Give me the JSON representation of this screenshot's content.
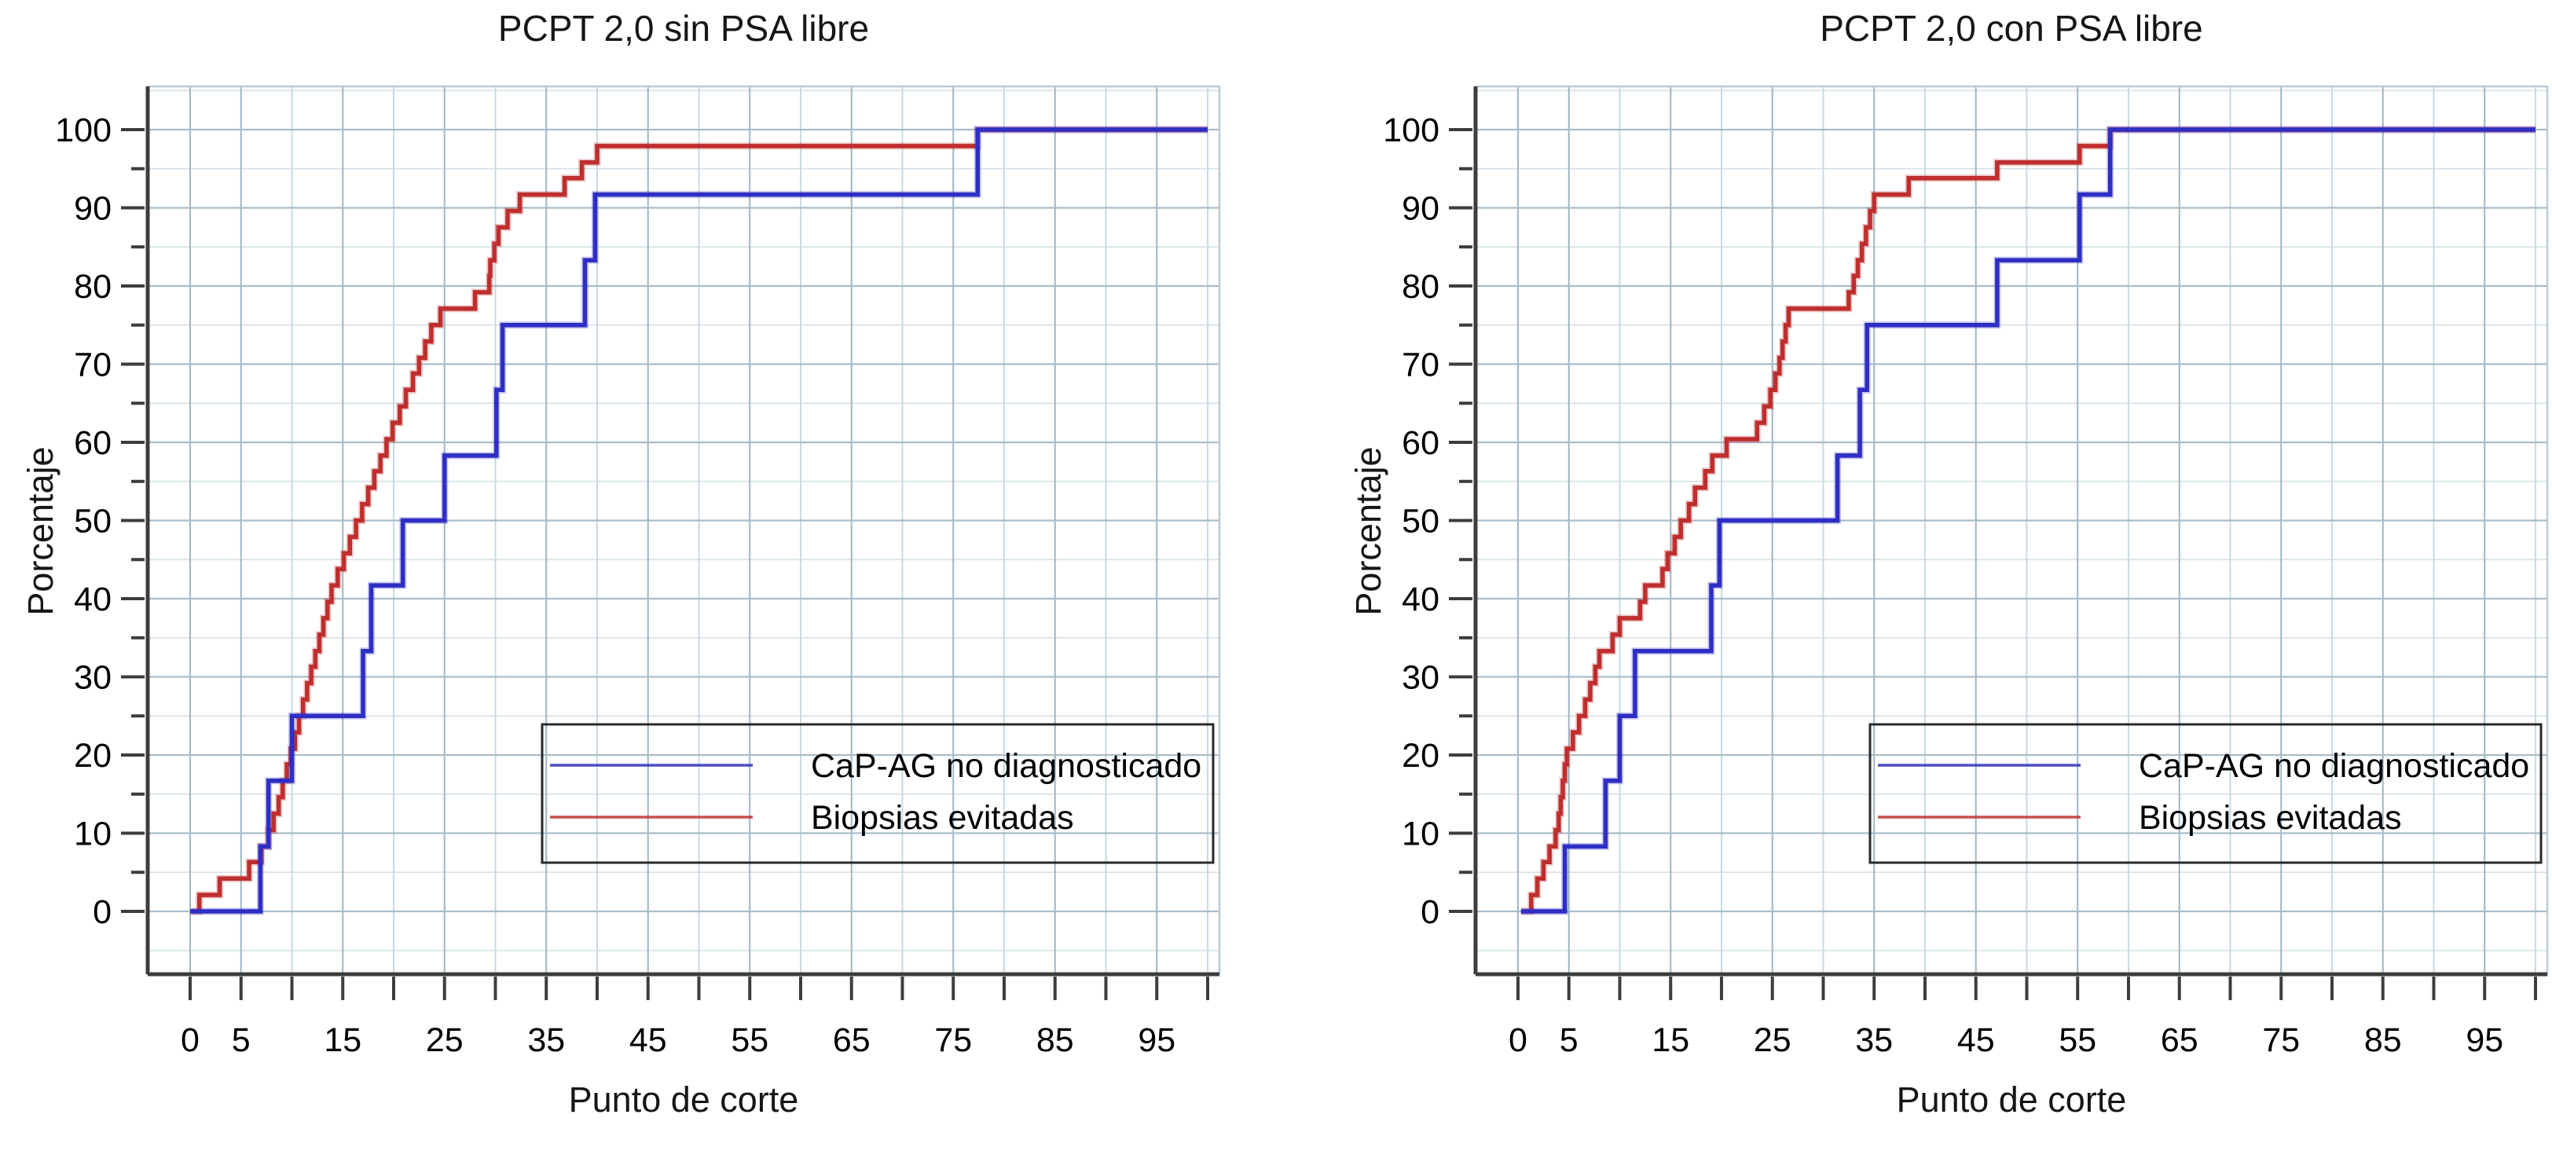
{
  "figure": {
    "background": "#ffffff",
    "text_color": "#161616"
  },
  "legend": {
    "border_color": "#2a2a2a",
    "entries": [
      {
        "label": "CaP-AG no diagnosticado",
        "color": "#2e2ec4"
      },
      {
        "label": "Biopsias evitadas",
        "color": "#bf2e2e"
      }
    ]
  },
  "axes": {
    "x": {
      "label": "Punto de corte",
      "range": [
        0,
        100
      ],
      "tick_step": 5,
      "tick_labels": [
        [
          0,
          "0"
        ],
        [
          5,
          "5"
        ],
        [
          15,
          "15"
        ],
        [
          25,
          "25"
        ],
        [
          35,
          "35"
        ],
        [
          45,
          "45"
        ],
        [
          55,
          "55"
        ],
        [
          65,
          "65"
        ],
        [
          75,
          "75"
        ],
        [
          85,
          "85"
        ],
        [
          95,
          "95"
        ]
      ]
    },
    "y": {
      "label": "Porcentaje",
      "range": [
        0,
        100
      ],
      "tick_step": 5,
      "tick_labels": [
        [
          0,
          "0"
        ],
        [
          10,
          "10"
        ],
        [
          20,
          "20"
        ],
        [
          30,
          "30"
        ],
        [
          40,
          "40"
        ],
        [
          50,
          "50"
        ],
        [
          60,
          "60"
        ],
        [
          70,
          "70"
        ],
        [
          80,
          "80"
        ],
        [
          90,
          "90"
        ],
        [
          100,
          "100"
        ]
      ]
    }
  },
  "chart_data": {
    "type": "line",
    "subtype": "step-ecdf",
    "grid": "on",
    "legend_position": "lower-right-inside",
    "note": "Two panels; each has two cumulative step curves read from the plot."
  },
  "charts": [
    {
      "title": "PCPT 2,0 sin PSA libre",
      "series": [
        {
          "name": "Biopsias evitadas",
          "color": "#bf2e2e",
          "start_x": 0.2,
          "end_x": 100,
          "steps": [
            [
              0.9,
              2.1
            ],
            [
              2.9,
              4.2
            ],
            [
              5.8,
              6.3
            ],
            [
              7.0,
              8.3
            ],
            [
              7.7,
              10.4
            ],
            [
              8.2,
              12.5
            ],
            [
              8.7,
              14.6
            ],
            [
              9.1,
              16.7
            ],
            [
              9.5,
              18.8
            ],
            [
              9.9,
              20.8
            ],
            [
              10.3,
              22.9
            ],
            [
              10.7,
              25
            ],
            [
              11.1,
              27.1
            ],
            [
              11.5,
              29.2
            ],
            [
              11.9,
              31.3
            ],
            [
              12.3,
              33.3
            ],
            [
              12.7,
              35.4
            ],
            [
              13.1,
              37.5
            ],
            [
              13.5,
              39.6
            ],
            [
              13.9,
              41.7
            ],
            [
              14.5,
              43.8
            ],
            [
              15.1,
              45.8
            ],
            [
              15.7,
              47.9
            ],
            [
              16.3,
              50
            ],
            [
              16.9,
              52.1
            ],
            [
              17.5,
              54.2
            ],
            [
              18.1,
              56.3
            ],
            [
              18.7,
              58.3
            ],
            [
              19.3,
              60.4
            ],
            [
              19.9,
              62.5
            ],
            [
              20.6,
              64.6
            ],
            [
              21.2,
              66.7
            ],
            [
              21.9,
              68.8
            ],
            [
              22.5,
              70.8
            ],
            [
              23.1,
              72.9
            ],
            [
              23.7,
              75
            ],
            [
              24.6,
              77.1
            ],
            [
              28.0,
              79.2
            ],
            [
              29.4,
              81.3
            ],
            [
              29.5,
              83.3
            ],
            [
              29.9,
              85.4
            ],
            [
              30.3,
              87.5
            ],
            [
              31.2,
              89.6
            ],
            [
              32.4,
              91.7
            ],
            [
              36.8,
              93.8
            ],
            [
              38.5,
              95.8
            ],
            [
              40.0,
              97.9
            ],
            [
              77.4,
              100
            ]
          ]
        },
        {
          "name": "CaP-AG no diagnosticado",
          "color": "#2e2ec4",
          "start_x": 0.0,
          "end_x": 100,
          "steps": [
            [
              6.9,
              8.3
            ],
            [
              7.7,
              16.7
            ],
            [
              10.0,
              25
            ],
            [
              17.0,
              33.3
            ],
            [
              17.8,
              41.7
            ],
            [
              20.9,
              50
            ],
            [
              25.0,
              58.3
            ],
            [
              30.1,
              66.7
            ],
            [
              30.7,
              75
            ],
            [
              38.8,
              83.3
            ],
            [
              39.8,
              91.7
            ],
            [
              77.4,
              100
            ]
          ]
        }
      ]
    },
    {
      "title": "PCPT 2,0 con PSA libre",
      "series": [
        {
          "name": "Biopsias evitadas",
          "color": "#bf2e2e",
          "start_x": 0.3,
          "end_x": 100,
          "steps": [
            [
              1.3,
              2.1
            ],
            [
              1.9,
              4.2
            ],
            [
              2.5,
              6.3
            ],
            [
              3.1,
              8.3
            ],
            [
              3.7,
              10.4
            ],
            [
              4.0,
              12.5
            ],
            [
              4.2,
              14.6
            ],
            [
              4.4,
              16.7
            ],
            [
              4.6,
              18.8
            ],
            [
              4.8,
              20.8
            ],
            [
              5.4,
              22.9
            ],
            [
              6.0,
              25
            ],
            [
              6.6,
              27.1
            ],
            [
              7.1,
              29.2
            ],
            [
              7.6,
              31.3
            ],
            [
              8.0,
              33.3
            ],
            [
              9.3,
              35.4
            ],
            [
              10.0,
              37.5
            ],
            [
              12.0,
              39.6
            ],
            [
              12.5,
              41.7
            ],
            [
              14.2,
              43.8
            ],
            [
              14.7,
              45.8
            ],
            [
              15.4,
              47.9
            ],
            [
              16.0,
              50
            ],
            [
              16.8,
              52.1
            ],
            [
              17.4,
              54.2
            ],
            [
              18.4,
              56.3
            ],
            [
              19.1,
              58.3
            ],
            [
              20.5,
              60.4
            ],
            [
              23.5,
              62.5
            ],
            [
              24.2,
              64.6
            ],
            [
              24.8,
              66.7
            ],
            [
              25.3,
              68.8
            ],
            [
              25.7,
              70.8
            ],
            [
              26.0,
              72.9
            ],
            [
              26.3,
              75
            ],
            [
              26.6,
              77.1
            ],
            [
              32.5,
              79.2
            ],
            [
              33.0,
              81.3
            ],
            [
              33.4,
              83.3
            ],
            [
              33.8,
              85.4
            ],
            [
              34.2,
              87.5
            ],
            [
              34.6,
              89.6
            ],
            [
              35.0,
              91.7
            ],
            [
              38.4,
              93.8
            ],
            [
              47.1,
              95.8
            ],
            [
              55.2,
              97.9
            ],
            [
              58.2,
              100
            ]
          ]
        },
        {
          "name": "CaP-AG no diagnosticado",
          "color": "#2e2ec4",
          "start_x": 0.3,
          "end_x": 100,
          "steps": [
            [
              4.6,
              8.3
            ],
            [
              8.6,
              16.7
            ],
            [
              10.0,
              25
            ],
            [
              11.5,
              33.3
            ],
            [
              19.0,
              41.7
            ],
            [
              19.8,
              50
            ],
            [
              31.4,
              58.3
            ],
            [
              33.6,
              66.7
            ],
            [
              34.3,
              75
            ],
            [
              47.1,
              83.3
            ],
            [
              55.2,
              91.7
            ],
            [
              58.2,
              100
            ]
          ]
        }
      ]
    }
  ]
}
